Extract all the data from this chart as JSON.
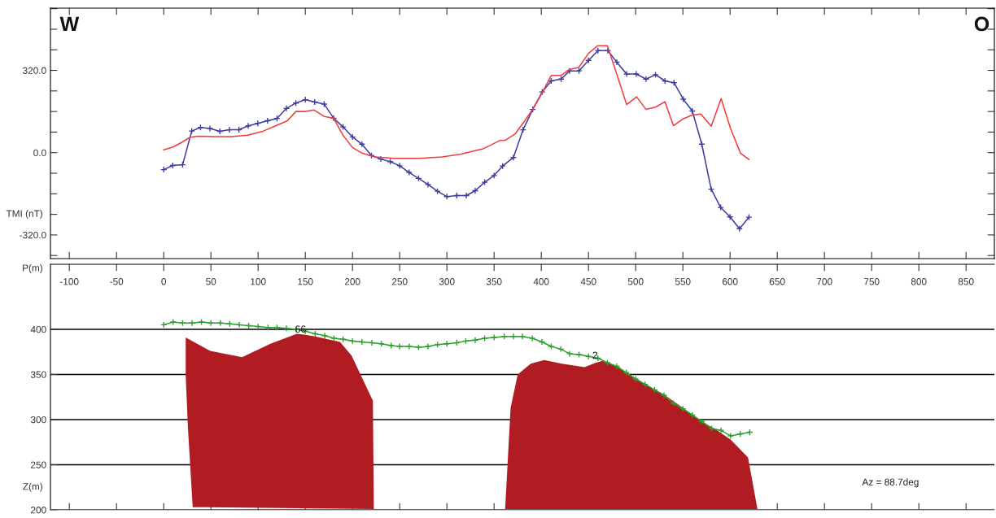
{
  "chart_data": [
    {
      "type": "line",
      "ylabel": "TMI (nT)",
      "annotations": [
        "W",
        "O"
      ],
      "tick_labels": "y",
      "grid": false,
      "legend": false,
      "line_style": "solid",
      "xlim": [
        -120,
        880
      ],
      "xticks": [
        -100,
        -50,
        0,
        50,
        100,
        150,
        200,
        250,
        300,
        350,
        400,
        450,
        500,
        550,
        600,
        650,
        700,
        750,
        800,
        850
      ],
      "ylim": [
        -412,
        562
      ],
      "yticks": [
        {
          "value": -400,
          "label": null
        },
        {
          "value": -320,
          "label": "-320.0"
        },
        {
          "value": -240,
          "label": null
        },
        {
          "value": -160,
          "label": null
        },
        {
          "value": -80,
          "label": null
        },
        {
          "value": 0,
          "label": "0.0"
        },
        {
          "value": 80,
          "label": null
        },
        {
          "value": 160,
          "label": null
        },
        {
          "value": 240,
          "label": null
        },
        {
          "value": 320,
          "label": "320.0"
        },
        {
          "value": 400,
          "label": null
        },
        {
          "value": 480,
          "label": null
        },
        {
          "value": 560,
          "label": null
        }
      ],
      "series": [
        {
          "color": "#3c3ca0",
          "marker": "cross",
          "x": [
            0,
            9.5,
            20,
            29.7,
            39,
            49,
            59.5,
            69.6,
            79.7,
            89.5,
            99.7,
            110,
            120,
            130,
            140,
            150,
            160,
            170,
            180,
            190,
            200,
            210,
            220,
            230,
            240,
            250,
            260,
            270,
            280,
            290,
            300,
            310.5,
            320.6,
            330,
            340,
            350,
            359,
            370.5,
            380.7,
            390.9,
            401,
            410.5,
            421,
            430,
            440,
            450,
            460,
            470.5,
            480,
            490.4,
            500.6,
            511,
            521,
            531,
            540.6,
            550.4,
            560,
            570,
            580,
            590,
            600,
            610,
            620
          ],
          "values": [
            -66,
            -50,
            -47,
            84,
            98,
            94,
            83,
            89,
            89,
            104,
            114,
            124,
            133,
            172,
            193,
            206,
            197,
            189,
            134,
            100,
            61,
            33,
            -11,
            -25,
            -35,
            -51,
            -77,
            -100,
            -124,
            -150,
            -171,
            -167,
            -167,
            -148,
            -115,
            -89,
            -52,
            -19,
            89,
            168,
            236,
            279,
            286,
            318,
            318,
            359,
            397,
            397,
            352,
            306,
            306,
            286,
            303,
            279,
            272,
            208,
            162,
            33,
            -142,
            -213,
            -250,
            -296,
            -251
          ]
        },
        {
          "color": "#f03c3c",
          "marker": "none",
          "x": [
            0,
            10,
            19.6,
            28,
            36.5,
            55,
            72,
            89,
            105.7,
            119,
            131,
            140,
            150,
            159,
            170,
            180,
            190,
            200,
            210,
            224,
            244,
            271,
            295,
            315,
            339,
            356,
            361.7,
            372,
            382,
            392,
            402,
            410.5,
            421,
            429.5,
            439.6,
            450,
            460,
            470,
            480,
            490.4,
            501,
            511,
            521,
            531,
            540,
            550,
            560,
            569,
            580,
            590.5,
            600.5,
            611,
            620
          ],
          "values": [
            11,
            22,
            41,
            60,
            64,
            62,
            62,
            68,
            84,
            105,
            124,
            160,
            160,
            166,
            141,
            134,
            67,
            20,
            -2,
            -17,
            -22,
            -22,
            -17,
            -6,
            16,
            47,
            48,
            72,
            121,
            175,
            240,
            300,
            300,
            323,
            331,
            386,
            416,
            416,
            305,
            187,
            217,
            168,
            177,
            198,
            105,
            131,
            146,
            150,
            103,
            210,
            94,
            -2,
            -27
          ]
        }
      ]
    },
    {
      "type": "line",
      "xlabel": "P(m)",
      "ylabel": "Z(m)",
      "annotations": [
        {
          "text": "66",
          "x": 139,
          "y": 394
        },
        {
          "text": "2",
          "x": 454,
          "y": 365
        },
        "Az = 88.7deg"
      ],
      "tick_labels": "xy",
      "grid": "y",
      "legend": false,
      "line_style": "solid",
      "xlim": [
        -120,
        880
      ],
      "xticks": [
        -100,
        -50,
        0,
        50,
        100,
        150,
        200,
        250,
        300,
        350,
        400,
        450,
        500,
        550,
        600,
        650,
        700,
        750,
        800,
        850
      ],
      "ylim": [
        200,
        472
      ],
      "yticks": [
        200,
        250,
        300,
        350,
        400
      ],
      "series": [
        {
          "type": "area",
          "color": "#b01c22",
          "x": [
            23.3,
            49.3,
            83,
            113,
            141,
            149,
            160.5,
            186.8,
            199,
            221.6,
            222.6,
            30.7,
            25.7,
            23.3
          ],
          "values": [
            391,
            376,
            369,
            384,
            395,
            394,
            392,
            386,
            371,
            321,
            201,
            203,
            290,
            348
          ]
        },
        {
          "type": "area",
          "color": "#b01c22",
          "x": [
            361.7,
            367.5,
            375,
            382,
            388.8,
            403,
            422,
            445.7,
            458,
            465,
            480,
            500.6,
            531,
            571.7,
            585,
            600.5,
            619,
            629
          ],
          "values": [
            201,
            313,
            350,
            356,
            362,
            366,
            362,
            358,
            363,
            365,
            359,
            345,
            327,
            297,
            289,
            278,
            258,
            201
          ]
        },
        {
          "color": "#2ca02c",
          "marker": "cross",
          "x": [
            0,
            10,
            20,
            30,
            40,
            50,
            60,
            70,
            80,
            90,
            100,
            110.5,
            120,
            130,
            140.5,
            150,
            160.5,
            170.6,
            180.4,
            190,
            200,
            210,
            220.6,
            230.7,
            240.9,
            250,
            260,
            270,
            280,
            290,
            300,
            310.5,
            320,
            330,
            340,
            350,
            360.7,
            370.5,
            380,
            390.5,
            400.7,
            410.5,
            420.7,
            430,
            440,
            450,
            460,
            470,
            480,
            490,
            500,
            510,
            520,
            530,
            540,
            550,
            560,
            570,
            580.5,
            590.4,
            600.5,
            610.7,
            620.9
          ],
          "values": [
            405,
            408,
            407,
            407,
            408,
            407,
            407,
            406,
            405,
            404,
            403,
            402,
            402,
            401,
            400,
            398,
            395,
            393,
            390,
            389,
            387,
            386,
            385,
            384,
            382,
            381,
            381,
            380,
            381,
            383,
            384,
            385,
            387,
            388,
            390,
            391,
            392,
            392,
            392,
            390,
            386,
            381,
            378,
            373,
            372,
            370,
            368,
            363,
            359,
            352,
            345,
            339,
            333,
            327,
            318,
            312,
            305,
            298,
            290,
            288,
            282,
            284,
            286
          ]
        }
      ]
    }
  ]
}
